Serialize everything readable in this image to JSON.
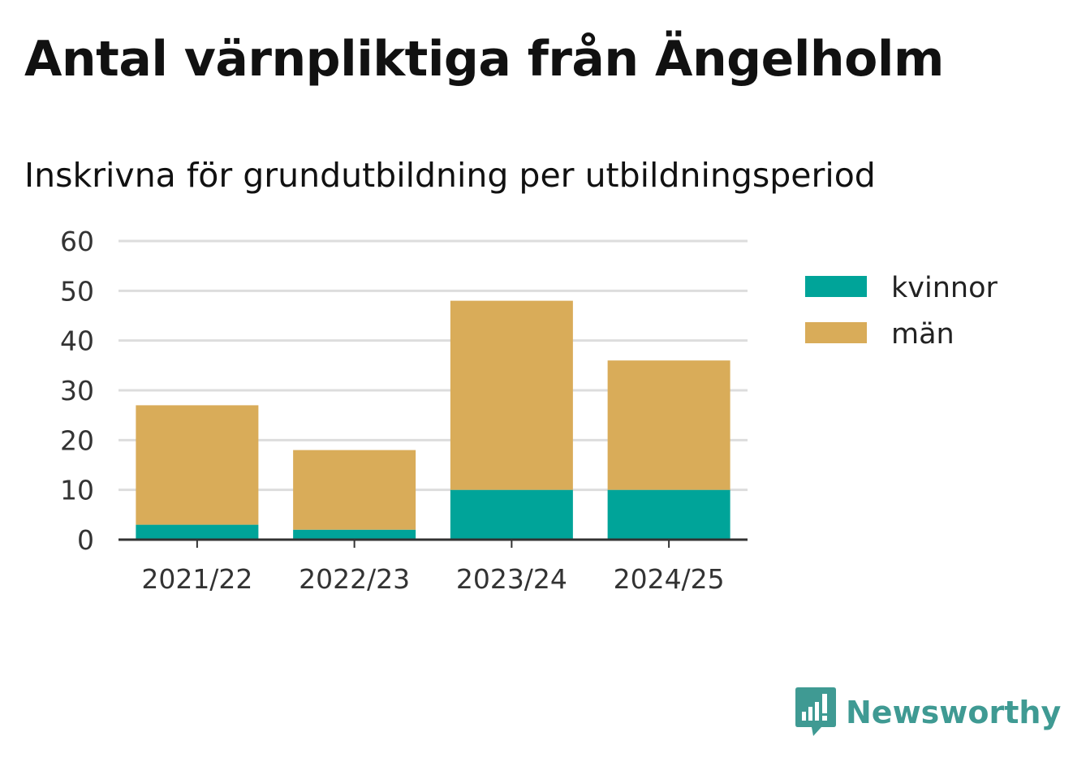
{
  "title": "Antal värnpliktiga från Ängelholm",
  "subtitle": "Inskrivna för grundutbildning per utbildningsperiod",
  "brand": {
    "name": "Newsworthy",
    "icon": "newsworthy-logo-icon",
    "color": "#3f9a93"
  },
  "chart_data": {
    "type": "bar",
    "stacked": true,
    "categories": [
      "2021/22",
      "2022/23",
      "2023/24",
      "2024/25"
    ],
    "series": [
      {
        "name": "kvinnor",
        "color": "#00a499",
        "values": [
          3,
          2,
          10,
          10
        ]
      },
      {
        "name": "män",
        "color": "#d9ac59",
        "values": [
          24,
          16,
          38,
          26
        ]
      }
    ],
    "ylim": [
      0,
      60
    ],
    "yticks": [
      0,
      10,
      20,
      30,
      40,
      50,
      60
    ],
    "grid": true,
    "legend_position": "right",
    "title": "Antal värnpliktiga från Ängelholm",
    "subtitle": "Inskrivna för grundutbildning per utbildningsperiod",
    "xlabel": "",
    "ylabel": ""
  }
}
